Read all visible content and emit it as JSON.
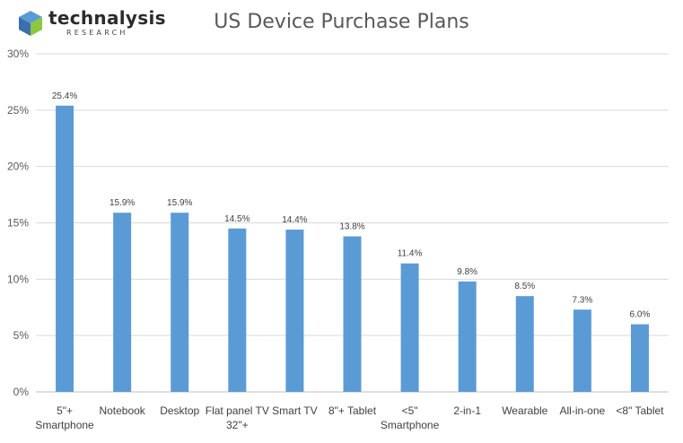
{
  "logo": {
    "brand": "technalysis",
    "sub": "RESEARCH",
    "icon": "cube-logo-icon"
  },
  "chart_data": {
    "type": "bar",
    "title": "US Device Purchase Plans",
    "categories": [
      [
        "5\"+",
        "Smartphone"
      ],
      [
        "Notebook"
      ],
      [
        "Desktop"
      ],
      [
        "Flat panel TV",
        "32\"+"
      ],
      [
        "Smart TV"
      ],
      [
        "8\"+ Tablet"
      ],
      [
        "<5\"",
        "Smartphone"
      ],
      [
        "2-in-1"
      ],
      [
        "Wearable"
      ],
      [
        "All-in-one"
      ],
      [
        "<8\" Tablet"
      ]
    ],
    "values": [
      25.4,
      15.9,
      15.9,
      14.5,
      14.4,
      13.8,
      11.4,
      9.8,
      8.5,
      7.3,
      6.0
    ],
    "data_labels": [
      "25.4%",
      "15.9%",
      "15.9%",
      "14.5%",
      "14.4%",
      "13.8%",
      "11.4%",
      "9.8%",
      "8.5%",
      "7.3%",
      "6.0%"
    ],
    "ylim": [
      0,
      30
    ],
    "yticks": [
      0,
      5,
      10,
      15,
      20,
      25,
      30
    ],
    "ytick_labels": [
      "0%",
      "5%",
      "10%",
      "15%",
      "20%",
      "25%",
      "30%"
    ],
    "grid": true,
    "bar_color": "#5b9bd5",
    "grid_color": "#d9d9d9"
  }
}
